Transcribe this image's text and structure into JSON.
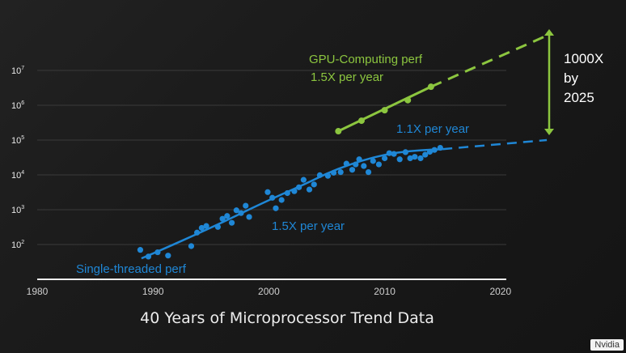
{
  "title": "40 Years of Microprocessor Trend Data",
  "credit": "Nvidia",
  "chart_data": {
    "type": "scatter",
    "title": "40 Years of Microprocessor Trend Data",
    "xlabel": "",
    "ylabel": "",
    "y_scale": "log",
    "xlim": [
      1980,
      2025
    ],
    "ylim": [
      10,
      100000000
    ],
    "x_ticks": [
      "1980",
      "1990",
      "2000",
      "2010",
      "2020"
    ],
    "y_ticks": [
      {
        "base": "10",
        "exp": "2",
        "value": 100
      },
      {
        "base": "10",
        "exp": "3",
        "value": 1000
      },
      {
        "base": "10",
        "exp": "4",
        "value": 10000
      },
      {
        "base": "10",
        "exp": "5",
        "value": 100000
      },
      {
        "base": "10",
        "exp": "6",
        "value": 1000000
      },
      {
        "base": "10",
        "exp": "7",
        "value": 10000000
      }
    ],
    "grid": true,
    "colors": {
      "gpu": "#8cc63f",
      "cpu": "#1f87d6",
      "bracket": "#8cc63f"
    },
    "series": [
      {
        "name": "Single-threaded perf",
        "points": [
          [
            1988.9,
            70
          ],
          [
            1989.6,
            45
          ],
          [
            1990.4,
            60
          ],
          [
            1991.3,
            48
          ],
          [
            1993.3,
            90
          ],
          [
            1993.8,
            220
          ],
          [
            1994.2,
            300
          ],
          [
            1994.6,
            340
          ],
          [
            1995.6,
            320
          ],
          [
            1996.0,
            550
          ],
          [
            1996.4,
            660
          ],
          [
            1996.8,
            420
          ],
          [
            1997.2,
            960
          ],
          [
            1997.6,
            800
          ],
          [
            1998.0,
            1300
          ],
          [
            1998.3,
            620
          ],
          [
            1999.9,
            3200
          ],
          [
            2000.3,
            2200
          ],
          [
            2000.6,
            1100
          ],
          [
            2001.1,
            1900
          ],
          [
            2001.6,
            3000
          ],
          [
            2002.2,
            3400
          ],
          [
            2002.6,
            4400
          ],
          [
            2003.0,
            7200
          ],
          [
            2003.5,
            3800
          ],
          [
            2003.9,
            5300
          ],
          [
            2004.4,
            9800
          ],
          [
            2005.1,
            9400
          ],
          [
            2005.6,
            11500
          ],
          [
            2006.2,
            12000
          ],
          [
            2006.7,
            21000
          ],
          [
            2007.2,
            14000
          ],
          [
            2007.5,
            20000
          ],
          [
            2007.8,
            28000
          ],
          [
            2008.2,
            18000
          ],
          [
            2008.6,
            12000
          ],
          [
            2009.0,
            25000
          ],
          [
            2009.5,
            20000
          ],
          [
            2010.0,
            30000
          ],
          [
            2010.4,
            42000
          ],
          [
            2010.8,
            40000
          ],
          [
            2011.3,
            28000
          ],
          [
            2011.8,
            45000
          ],
          [
            2012.2,
            30000
          ],
          [
            2012.6,
            33000
          ],
          [
            2013.1,
            30000
          ],
          [
            2013.5,
            38000
          ],
          [
            2013.9,
            46000
          ],
          [
            2014.3,
            52000
          ],
          [
            2014.8,
            60000
          ]
        ]
      },
      {
        "name": "GPU-Computing perf",
        "points": [
          [
            2006.0,
            180000
          ],
          [
            2008.0,
            360000
          ],
          [
            2010.0,
            720000
          ],
          [
            2012.0,
            1400000
          ],
          [
            2014.0,
            3400000
          ]
        ]
      }
    ],
    "trend_lines": [
      {
        "name": "1.5X per year",
        "series": "Single-threaded perf",
        "x": [
          1989,
          1990,
          1995,
          2000,
          2003,
          2005,
          2007,
          2009,
          2011,
          2013,
          2015
        ],
        "y": [
          40,
          55,
          300,
          1900,
          5200,
          11000,
          20000,
          32000,
          44000,
          51000,
          55000
        ]
      },
      {
        "name": "1.1X per year",
        "series": "Single-threaded perf",
        "projection": {
          "x": [
            2015,
            2024
          ],
          "y": [
            55000,
            100000
          ]
        }
      },
      {
        "name": "1.5X per year",
        "series": "GPU-Computing perf",
        "x": [
          2006,
          2014
        ],
        "y": [
          180000,
          3400000
        ],
        "projection": {
          "x": [
            2014,
            2024
          ],
          "y": [
            3400000,
            100000000
          ]
        }
      }
    ],
    "annotations": [
      {
        "id": "gpu_name",
        "text": "GPU-Computing perf",
        "color": "#8cc63f"
      },
      {
        "id": "gpu_rate",
        "text": "1.5X per year",
        "color": "#8cc63f"
      },
      {
        "id": "cpu_late",
        "text": "1.1X per year",
        "color": "#1f87d6"
      },
      {
        "id": "cpu_early",
        "text": "1.5X per year",
        "color": "#1f87d6"
      },
      {
        "id": "cpu_name",
        "text": "Single-threaded perf",
        "color": "#1f87d6"
      }
    ],
    "bracket_note": [
      "1000X",
      "by",
      "2025"
    ]
  }
}
